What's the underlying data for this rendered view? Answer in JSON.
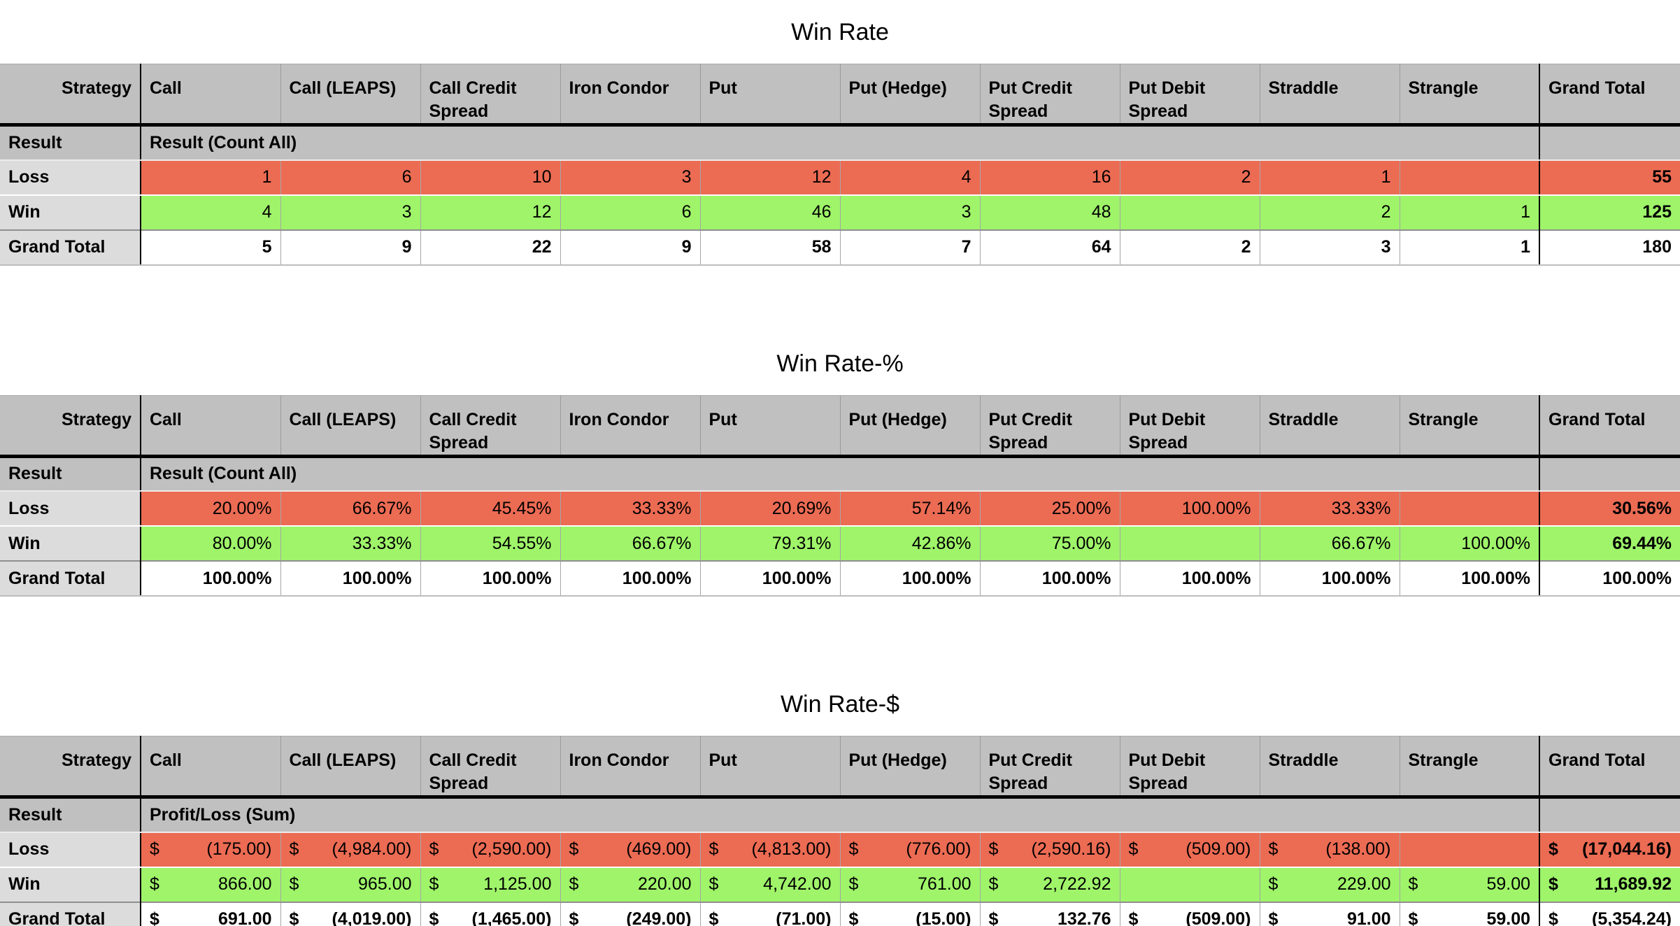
{
  "colors": {
    "loss_bg": "#EC6B53",
    "win_bg": "#9FF46A",
    "header_bg": "#C0C0C0",
    "label_bg": "#DCDCDC"
  },
  "columns": [
    "Strategy",
    "Call",
    "Call (LEAPS)",
    "Call Credit Spread",
    "Iron Condor",
    "Put",
    "Put (Hedge)",
    "Put Credit Spread",
    "Put Debit Spread",
    "Straddle",
    "Strangle",
    "Grand Total"
  ],
  "tables": [
    {
      "title": "Win Rate",
      "result_label": "Result",
      "result_span_label": "Result (Count All)",
      "currency": false,
      "rows": [
        {
          "label": "Loss",
          "type": "loss",
          "values": [
            "1",
            "6",
            "10",
            "3",
            "12",
            "4",
            "16",
            "2",
            "1",
            "",
            "55"
          ]
        },
        {
          "label": "Win",
          "type": "win",
          "values": [
            "4",
            "3",
            "12",
            "6",
            "46",
            "3",
            "48",
            "",
            "2",
            "1",
            "125"
          ]
        },
        {
          "label": "Grand Total",
          "type": "total",
          "values": [
            "5",
            "9",
            "22",
            "9",
            "58",
            "7",
            "64",
            "2",
            "3",
            "1",
            "180"
          ]
        }
      ]
    },
    {
      "title": "Win Rate-%",
      "result_label": "Result",
      "result_span_label": "Result (Count All)",
      "currency": false,
      "rows": [
        {
          "label": "Loss",
          "type": "loss",
          "values": [
            "20.00%",
            "66.67%",
            "45.45%",
            "33.33%",
            "20.69%",
            "57.14%",
            "25.00%",
            "100.00%",
            "33.33%",
            "",
            "30.56%"
          ]
        },
        {
          "label": "Win",
          "type": "win",
          "values": [
            "80.00%",
            "33.33%",
            "54.55%",
            "66.67%",
            "79.31%",
            "42.86%",
            "75.00%",
            "",
            "66.67%",
            "100.00%",
            "69.44%"
          ]
        },
        {
          "label": "Grand Total",
          "type": "total",
          "values": [
            "100.00%",
            "100.00%",
            "100.00%",
            "100.00%",
            "100.00%",
            "100.00%",
            "100.00%",
            "100.00%",
            "100.00%",
            "100.00%",
            "100.00%"
          ]
        }
      ]
    },
    {
      "title": "Win Rate-$",
      "result_label": "Result",
      "result_span_label": "Profit/Loss (Sum)",
      "currency": true,
      "currency_symbol": "$",
      "rows": [
        {
          "label": "Loss",
          "type": "loss",
          "values": [
            "(175.00)",
            "(4,984.00)",
            "(2,590.00)",
            "(469.00)",
            "(4,813.00)",
            "(776.00)",
            "(2,590.16)",
            "(509.00)",
            "(138.00)",
            "",
            "(17,044.16)"
          ]
        },
        {
          "label": "Win",
          "type": "win",
          "values": [
            "866.00",
            "965.00",
            "1,125.00",
            "220.00",
            "4,742.00",
            "761.00",
            "2,722.92",
            "",
            "229.00",
            "59.00",
            "11,689.92"
          ]
        },
        {
          "label": "Grand Total",
          "type": "total",
          "values": [
            "691.00",
            "(4,019.00)",
            "(1,465.00)",
            "(249.00)",
            "(71.00)",
            "(15.00)",
            "132.76",
            "(509.00)",
            "91.00",
            "59.00",
            "(5,354.24)"
          ]
        }
      ]
    }
  ]
}
